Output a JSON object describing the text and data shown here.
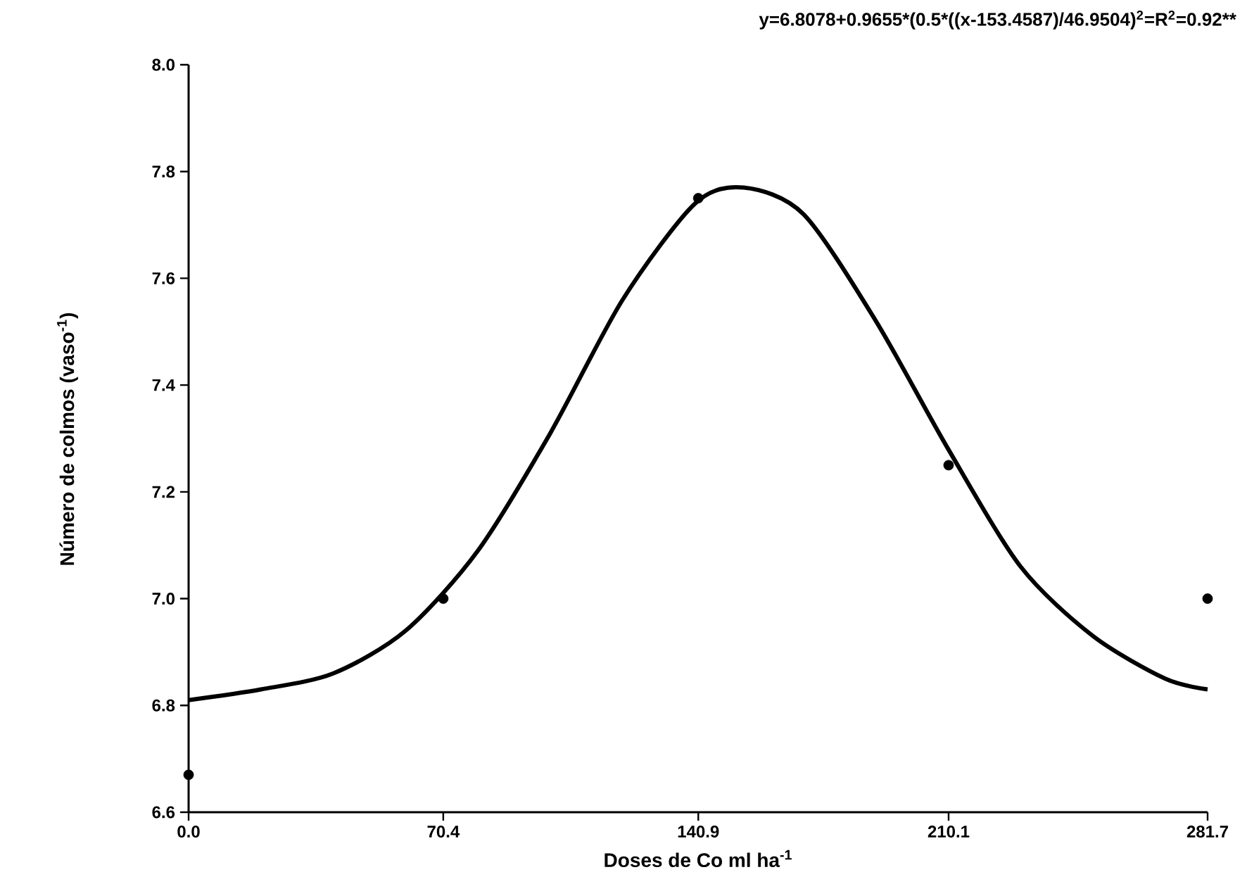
{
  "chart_data": {
    "type": "scatter",
    "title": "y=6.8078+0.9655*(0.5*((x-153.4587)/46.9504)$^{2}$=R$^{2}$=0.92**",
    "xlabel": "Doses de Co ml ha$^{-1}$",
    "ylabel": "Número de colmos (vaso$^{-1}$)",
    "xlim": [
      0,
      281.7
    ],
    "xticks": [
      {
        "value": 0,
        "label": "0.0"
      },
      70.4,
      140.9,
      210.1,
      281.7
    ],
    "ylim": [
      6.6,
      8.0
    ],
    "yticks": [
      6.6,
      6.8,
      {
        "value": 7.0,
        "label": "7.0"
      },
      7.2,
      7.4,
      7.6,
      7.8,
      {
        "value": 8.0,
        "label": "8.0"
      }
    ],
    "series": [
      {
        "type": "scatter",
        "color": "#000000",
        "marker": "circle",
        "x": [
          0,
          70.4,
          140.9,
          210.1,
          281.7
        ],
        "values": [
          6.67,
          7.0,
          7.75,
          7.25,
          7.0
        ]
      },
      {
        "type": "line",
        "color": "#000000",
        "marker": "none",
        "line_style": "solid",
        "x": [
          0,
          20,
          40,
          60,
          80,
          100,
          120,
          140,
          153.5,
          170,
          190,
          210,
          230,
          250,
          270,
          281.7
        ],
        "values": [
          6.81,
          6.83,
          6.86,
          6.94,
          7.09,
          7.31,
          7.56,
          7.74,
          7.77,
          7.72,
          7.52,
          7.28,
          7.06,
          6.93,
          6.85,
          6.83
        ]
      }
    ]
  }
}
